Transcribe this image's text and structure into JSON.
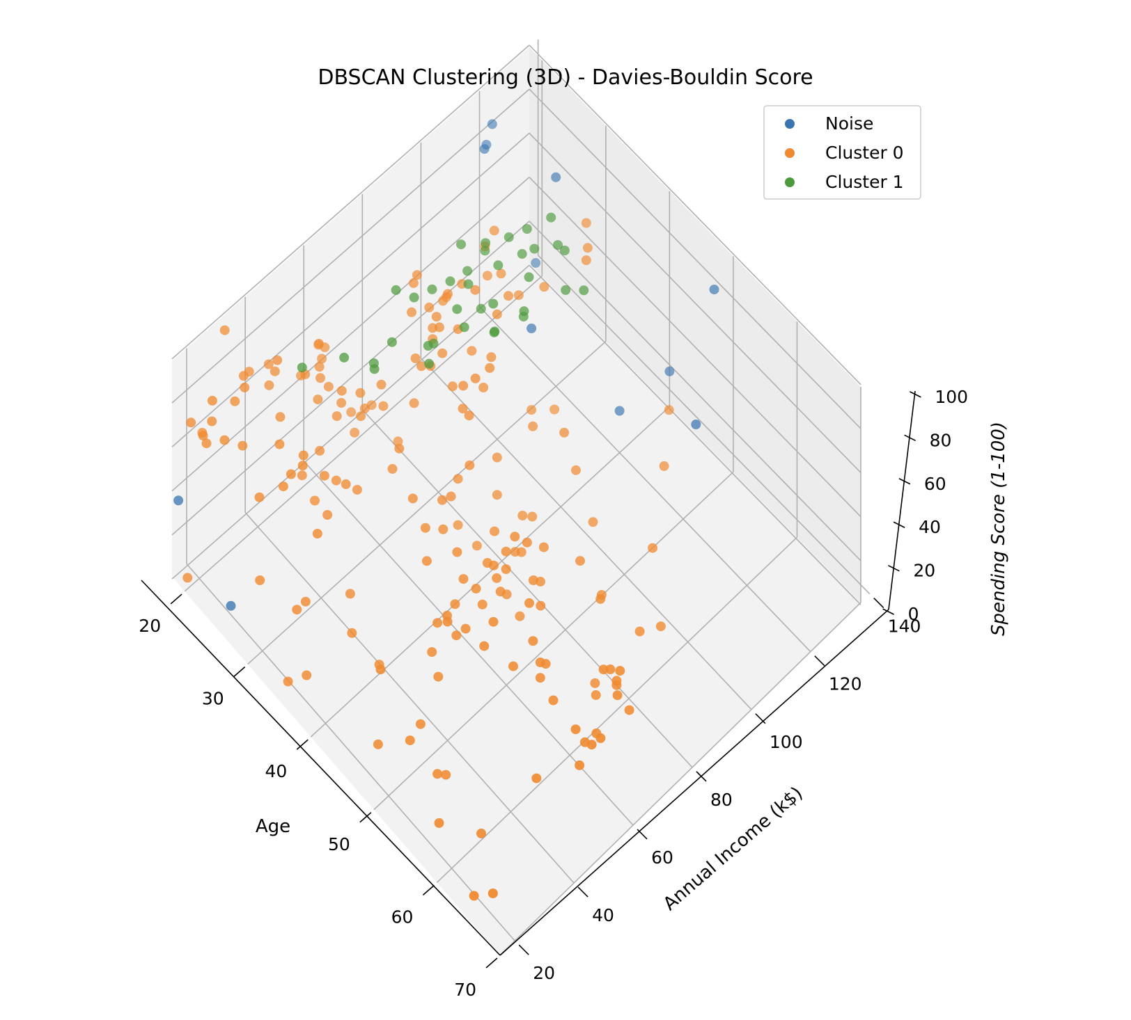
{
  "chart_data": {
    "type": "scatter",
    "projection": "3d",
    "title": "DBSCAN Clustering (3D) - Davies-Bouldin Score",
    "xlabel": "Age",
    "ylabel": "Annual Income (k$)",
    "zlabel": "Spending Score (1-100)",
    "xticks": [
      "20",
      "30",
      "40",
      "50",
      "60",
      "70"
    ],
    "yticks": [
      "20",
      "40",
      "60",
      "80",
      "100",
      "120",
      "140"
    ],
    "zticks": [
      "0",
      "20",
      "40",
      "60",
      "80",
      "100"
    ],
    "xlim": [
      18,
      70
    ],
    "ylim": [
      15,
      137
    ],
    "zlim": [
      1,
      99
    ],
    "grid": true,
    "legend_position": "top-right",
    "series": [
      {
        "name": "Noise",
        "color": "#3a75b0",
        "points": [
          [
            19,
            137,
            4
          ],
          [
            20,
            118,
            83
          ],
          [
            20,
            120,
            90
          ],
          [
            22,
            113,
            93
          ],
          [
            40,
            137,
            17
          ],
          [
            30,
            120,
            96
          ],
          [
            40,
            120,
            20
          ],
          [
            52,
            120,
            50
          ],
          [
            19,
            15,
            39
          ],
          [
            25,
            20,
            5
          ],
          [
            34,
            103,
            60
          ],
          [
            47,
            137,
            75
          ]
        ]
      },
      {
        "name": "Cluster 0",
        "color": "#f08a30",
        "points": [
          [
            21,
            15,
            81
          ],
          [
            20,
            16,
            6
          ],
          [
            23,
            16,
            77
          ],
          [
            31,
            17,
            40
          ],
          [
            22,
            17,
            76
          ],
          [
            35,
            18,
            6
          ],
          [
            23,
            18,
            94
          ],
          [
            64,
            19,
            3
          ],
          [
            30,
            19,
            72
          ],
          [
            67,
            19,
            14
          ],
          [
            35,
            19,
            99
          ],
          [
            58,
            20,
            15
          ],
          [
            24,
            20,
            77
          ],
          [
            37,
            20,
            13
          ],
          [
            22,
            20,
            79
          ],
          [
            35,
            21,
            35
          ],
          [
            20,
            21,
            66
          ],
          [
            52,
            23,
            29
          ],
          [
            35,
            23,
            98
          ],
          [
            35,
            24,
            35
          ],
          [
            25,
            24,
            73
          ],
          [
            46,
            25,
            5
          ],
          [
            31,
            25,
            73
          ],
          [
            54,
            28,
            14
          ],
          [
            29,
            28,
            82
          ],
          [
            45,
            28,
            32
          ],
          [
            35,
            28,
            61
          ],
          [
            40,
            29,
            31
          ],
          [
            23,
            29,
            87
          ],
          [
            60,
            30,
            4
          ],
          [
            21,
            30,
            73
          ],
          [
            53,
            33,
            4
          ],
          [
            18,
            33,
            92
          ],
          [
            49,
            33,
            14
          ],
          [
            21,
            33,
            81
          ],
          [
            42,
            34,
            17
          ],
          [
            30,
            34,
            73
          ],
          [
            36,
            37,
            26
          ],
          [
            20,
            37,
            75
          ],
          [
            65,
            38,
            35
          ],
          [
            24,
            38,
            92
          ],
          [
            48,
            39,
            36
          ],
          [
            31,
            39,
            61
          ],
          [
            49,
            39,
            28
          ],
          [
            24,
            39,
            65
          ],
          [
            50,
            40,
            55
          ],
          [
            27,
            40,
            47
          ],
          [
            29,
            40,
            42
          ],
          [
            31,
            40,
            42
          ],
          [
            49,
            42,
            52
          ],
          [
            33,
            42,
            60
          ],
          [
            31,
            43,
            54
          ],
          [
            59,
            43,
            60
          ],
          [
            50,
            43,
            45
          ],
          [
            47,
            43,
            41
          ],
          [
            51,
            44,
            50
          ],
          [
            69,
            44,
            46
          ],
          [
            27,
            46,
            51
          ],
          [
            53,
            46,
            46
          ],
          [
            70,
            46,
            56
          ],
          [
            19,
            46,
            55
          ],
          [
            67,
            47,
            52
          ],
          [
            54,
            47,
            59
          ],
          [
            63,
            48,
            51
          ],
          [
            18,
            48,
            59
          ],
          [
            43,
            48,
            50
          ],
          [
            68,
            48,
            48
          ],
          [
            19,
            48,
            59
          ],
          [
            32,
            48,
            47
          ],
          [
            70,
            49,
            55
          ],
          [
            47,
            49,
            42
          ],
          [
            60,
            50,
            49
          ],
          [
            60,
            50,
            56
          ],
          [
            59,
            54,
            47
          ],
          [
            26,
            54,
            54
          ],
          [
            45,
            54,
            53
          ],
          [
            40,
            54,
            48
          ],
          [
            23,
            54,
            52
          ],
          [
            49,
            54,
            42
          ],
          [
            57,
            54,
            51
          ],
          [
            38,
            54,
            55
          ],
          [
            67,
            54,
            41
          ],
          [
            46,
            54,
            44
          ],
          [
            21,
            54,
            57
          ],
          [
            48,
            54,
            46
          ],
          [
            55,
            57,
            58
          ],
          [
            22,
            57,
            55
          ],
          [
            34,
            58,
            60
          ],
          [
            50,
            58,
            46
          ],
          [
            68,
            59,
            55
          ],
          [
            18,
            59,
            41
          ],
          [
            48,
            60,
            49
          ],
          [
            40,
            60,
            40
          ],
          [
            32,
            60,
            42
          ],
          [
            24,
            60,
            52
          ],
          [
            47,
            60,
            47
          ],
          [
            27,
            60,
            50
          ],
          [
            48,
            61,
            42
          ],
          [
            20,
            61,
            49
          ],
          [
            23,
            62,
            41
          ],
          [
            49,
            62,
            48
          ],
          [
            67,
            62,
            59
          ],
          [
            26,
            62,
            55
          ],
          [
            49,
            62,
            56
          ],
          [
            21,
            62,
            42
          ],
          [
            66,
            63,
            50
          ],
          [
            54,
            63,
            46
          ],
          [
            68,
            63,
            43
          ],
          [
            66,
            63,
            48
          ],
          [
            65,
            63,
            52
          ],
          [
            19,
            63,
            54
          ],
          [
            38,
            64,
            42
          ],
          [
            19,
            64,
            46
          ],
          [
            18,
            65,
            48
          ],
          [
            19,
            65,
            50
          ],
          [
            63,
            65,
            43
          ],
          [
            49,
            65,
            59
          ],
          [
            51,
            67,
            43
          ],
          [
            50,
            67,
            57
          ],
          [
            27,
            67,
            56
          ],
          [
            38,
            67,
            40
          ],
          [
            40,
            69,
            58
          ],
          [
            39,
            69,
            91
          ],
          [
            23,
            70,
            29
          ],
          [
            31,
            70,
            77
          ],
          [
            43,
            71,
            35
          ],
          [
            40,
            71,
            95
          ],
          [
            59,
            71,
            11
          ],
          [
            38,
            71,
            75
          ],
          [
            47,
            71,
            9
          ],
          [
            39,
            71,
            75
          ],
          [
            25,
            72,
            34
          ],
          [
            31,
            72,
            71
          ],
          [
            20,
            73,
            5
          ],
          [
            29,
            73,
            88
          ],
          [
            44,
            73,
            7
          ],
          [
            32,
            73,
            73
          ],
          [
            19,
            74,
            10
          ],
          [
            35,
            74,
            72
          ],
          [
            57,
            75,
            5
          ],
          [
            32,
            75,
            93
          ],
          [
            28,
            76,
            40
          ],
          [
            32,
            76,
            87
          ],
          [
            25,
            77,
            12
          ],
          [
            28,
            77,
            97
          ],
          [
            48,
            77,
            36
          ],
          [
            32,
            77,
            74
          ],
          [
            34,
            78,
            22
          ],
          [
            34,
            78,
            90
          ],
          [
            43,
            78,
            17
          ],
          [
            39,
            78,
            88
          ],
          [
            44,
            78,
            20
          ],
          [
            38,
            78,
            76
          ],
          [
            47,
            78,
            16
          ],
          [
            27,
            78,
            89
          ],
          [
            37,
            78,
            1
          ],
          [
            30,
            78,
            78
          ],
          [
            34,
            78,
            1
          ],
          [
            30,
            78,
            73
          ],
          [
            56,
            79,
            35
          ],
          [
            29,
            79,
            83
          ],
          [
            19,
            81,
            5
          ],
          [
            31,
            81,
            93
          ],
          [
            50,
            85,
            26
          ],
          [
            36,
            85,
            75
          ],
          [
            42,
            86,
            20
          ],
          [
            33,
            86,
            95
          ],
          [
            36,
            87,
            27
          ],
          [
            32,
            87,
            63
          ],
          [
            40,
            87,
            13
          ],
          [
            28,
            87,
            75
          ],
          [
            36,
            87,
            10
          ],
          [
            36,
            87,
            92
          ],
          [
            52,
            88,
            13
          ],
          [
            30,
            88,
            86
          ],
          [
            58,
            88,
            15
          ],
          [
            27,
            88,
            69
          ],
          [
            59,
            93,
            14
          ],
          [
            35,
            93,
            90
          ],
          [
            37,
            97,
            32
          ],
          [
            32,
            97,
            86
          ],
          [
            46,
            98,
            15
          ],
          [
            29,
            98,
            88
          ],
          [
            41,
            99,
            39
          ],
          [
            30,
            99,
            97
          ],
          [
            54,
            101,
            24
          ],
          [
            28,
            101,
            68
          ],
          [
            41,
            103,
            17
          ],
          [
            36,
            103,
            85
          ],
          [
            34,
            103,
            23
          ],
          [
            32,
            103,
            69
          ],
          [
            33,
            113,
            8
          ],
          [
            38,
            113,
            91
          ],
          [
            47,
            120,
            16
          ],
          [
            35,
            120,
            79
          ],
          [
            45,
            126,
            28
          ],
          [
            32,
            126,
            74
          ]
        ]
      },
      {
        "name": "Cluster 1",
        "color": "#4d9a3c",
        "points": [
          [
            27,
            40,
            96
          ],
          [
            29,
            50,
            95
          ],
          [
            30,
            58,
            86
          ],
          [
            31,
            62,
            94
          ],
          [
            33,
            70,
            89
          ],
          [
            27,
            72,
            93
          ],
          [
            35,
            78,
            94
          ],
          [
            29,
            80,
            90
          ],
          [
            32,
            82,
            88
          ],
          [
            30,
            84,
            92
          ],
          [
            36,
            86,
            85
          ],
          [
            31,
            88,
            89
          ],
          [
            34,
            90,
            87
          ],
          [
            28,
            92,
            93
          ],
          [
            37,
            94,
            88
          ],
          [
            32,
            96,
            91
          ],
          [
            29,
            98,
            86
          ],
          [
            35,
            100,
            90
          ],
          [
            33,
            102,
            92
          ],
          [
            30,
            104,
            88
          ],
          [
            38,
            106,
            86
          ],
          [
            31,
            108,
            90
          ],
          [
            36,
            110,
            93
          ],
          [
            34,
            112,
            87
          ],
          [
            32,
            114,
            91
          ],
          [
            39,
            110,
            84
          ],
          [
            30,
            96,
            95
          ],
          [
            33,
            88,
            84
          ],
          [
            28,
            76,
            88
          ],
          [
            35,
            66,
            92
          ],
          [
            31,
            56,
            89
          ],
          [
            37,
            84,
            91
          ],
          [
            29,
            92,
            84
          ],
          [
            34,
            104,
            95
          ],
          [
            36,
            96,
            80
          ],
          [
            32,
            74,
            82
          ]
        ]
      }
    ]
  }
}
